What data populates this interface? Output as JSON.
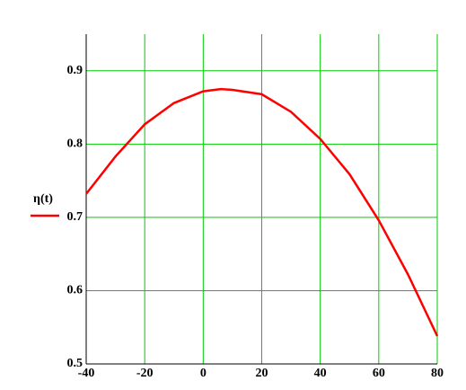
{
  "chart_data": {
    "type": "line",
    "x": [
      -40,
      -30,
      -20,
      -10,
      0,
      6,
      10,
      20,
      30,
      40,
      50,
      60,
      70,
      80
    ],
    "series": [
      {
        "name": "η(t)",
        "color": "#ff0000",
        "values": [
          0.732,
          0.783,
          0.827,
          0.856,
          0.872,
          0.875,
          0.874,
          0.868,
          0.844,
          0.807,
          0.759,
          0.696,
          0.622,
          0.538
        ]
      }
    ],
    "xlim": [
      -40,
      80
    ],
    "xticks": [
      -40,
      -20,
      0,
      20,
      40,
      60,
      80
    ],
    "ylim": [
      0.5,
      0.95
    ],
    "yticks": [
      0.5,
      0.6,
      0.7,
      0.8,
      0.9
    ],
    "grid": true,
    "grid_color": "#00cc00",
    "legend": "left"
  }
}
